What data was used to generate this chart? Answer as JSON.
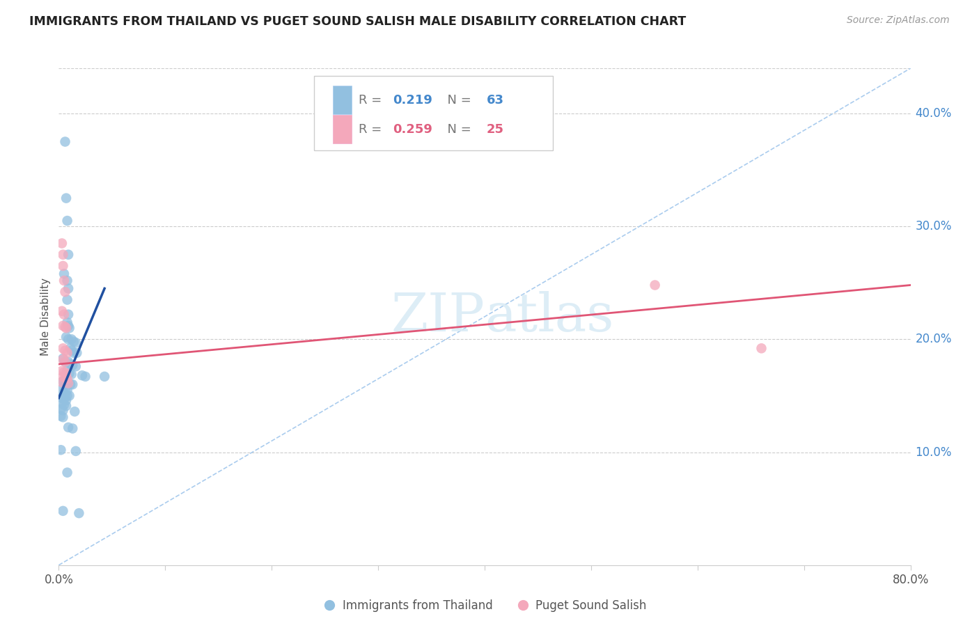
{
  "title": "IMMIGRANTS FROM THAILAND VS PUGET SOUND SALISH MALE DISABILITY CORRELATION CHART",
  "source": "Source: ZipAtlas.com",
  "ylabel": "Male Disability",
  "xlim": [
    0.0,
    0.8
  ],
  "ylim": [
    0.0,
    0.44
  ],
  "x_ticks": [
    0.0,
    0.1,
    0.2,
    0.3,
    0.4,
    0.5,
    0.6,
    0.7,
    0.8
  ],
  "y_ticks_right": [
    0.1,
    0.2,
    0.3,
    0.4
  ],
  "y_tick_labels_right": [
    "10.0%",
    "20.0%",
    "30.0%",
    "40.0%"
  ],
  "legend1_label": "Immigrants from Thailand",
  "legend2_label": "Puget Sound Salish",
  "R1": "0.219",
  "N1": "63",
  "R2": "0.259",
  "N2": "25",
  "blue_color": "#92C0E0",
  "pink_color": "#F4A8BB",
  "blue_line_color": "#2050A0",
  "pink_line_color": "#E05575",
  "dashed_line_color": "#AACCEE",
  "watermark_color": "#D8EAF5",
  "blue_dots": [
    [
      0.006,
      0.375
    ],
    [
      0.007,
      0.325
    ],
    [
      0.008,
      0.305
    ],
    [
      0.009,
      0.275
    ],
    [
      0.005,
      0.258
    ],
    [
      0.008,
      0.252
    ],
    [
      0.009,
      0.245
    ],
    [
      0.008,
      0.235
    ],
    [
      0.009,
      0.222
    ],
    [
      0.008,
      0.215
    ],
    [
      0.009,
      0.212
    ],
    [
      0.01,
      0.21
    ],
    [
      0.007,
      0.202
    ],
    [
      0.009,
      0.2
    ],
    [
      0.012,
      0.2
    ],
    [
      0.014,
      0.198
    ],
    [
      0.016,
      0.197
    ],
    [
      0.011,
      0.192
    ],
    [
      0.012,
      0.19
    ],
    [
      0.014,
      0.188
    ],
    [
      0.017,
      0.188
    ],
    [
      0.004,
      0.183
    ],
    [
      0.006,
      0.18
    ],
    [
      0.009,
      0.18
    ],
    [
      0.011,
      0.178
    ],
    [
      0.013,
      0.177
    ],
    [
      0.016,
      0.176
    ],
    [
      0.008,
      0.172
    ],
    [
      0.01,
      0.17
    ],
    [
      0.012,
      0.169
    ],
    [
      0.004,
      0.163
    ],
    [
      0.006,
      0.161
    ],
    [
      0.009,
      0.161
    ],
    [
      0.011,
      0.16
    ],
    [
      0.013,
      0.16
    ],
    [
      0.004,
      0.157
    ],
    [
      0.006,
      0.156
    ],
    [
      0.008,
      0.155
    ],
    [
      0.004,
      0.152
    ],
    [
      0.006,
      0.151
    ],
    [
      0.008,
      0.15
    ],
    [
      0.01,
      0.15
    ],
    [
      0.003,
      0.148
    ],
    [
      0.005,
      0.147
    ],
    [
      0.007,
      0.146
    ],
    [
      0.003,
      0.143
    ],
    [
      0.005,
      0.142
    ],
    [
      0.007,
      0.141
    ],
    [
      0.002,
      0.138
    ],
    [
      0.004,
      0.137
    ],
    [
      0.015,
      0.136
    ],
    [
      0.002,
      0.132
    ],
    [
      0.004,
      0.131
    ],
    [
      0.009,
      0.122
    ],
    [
      0.013,
      0.121
    ],
    [
      0.002,
      0.102
    ],
    [
      0.016,
      0.101
    ],
    [
      0.008,
      0.082
    ],
    [
      0.004,
      0.048
    ],
    [
      0.019,
      0.046
    ],
    [
      0.022,
      0.168
    ],
    [
      0.025,
      0.167
    ],
    [
      0.043,
      0.167
    ]
  ],
  "pink_dots": [
    [
      0.003,
      0.285
    ],
    [
      0.004,
      0.275
    ],
    [
      0.004,
      0.265
    ],
    [
      0.005,
      0.252
    ],
    [
      0.006,
      0.242
    ],
    [
      0.003,
      0.225
    ],
    [
      0.005,
      0.222
    ],
    [
      0.004,
      0.212
    ],
    [
      0.006,
      0.211
    ],
    [
      0.007,
      0.21
    ],
    [
      0.004,
      0.192
    ],
    [
      0.006,
      0.19
    ],
    [
      0.008,
      0.188
    ],
    [
      0.004,
      0.182
    ],
    [
      0.006,
      0.18
    ],
    [
      0.003,
      0.172
    ],
    [
      0.005,
      0.171
    ],
    [
      0.007,
      0.17
    ],
    [
      0.004,
      0.167
    ],
    [
      0.006,
      0.166
    ],
    [
      0.008,
      0.165
    ],
    [
      0.003,
      0.162
    ],
    [
      0.009,
      0.161
    ],
    [
      0.56,
      0.248
    ],
    [
      0.66,
      0.192
    ]
  ],
  "blue_line_x": [
    0.0,
    0.043
  ],
  "blue_line_y": [
    0.148,
    0.245
  ],
  "pink_line_x": [
    0.0,
    0.8
  ],
  "pink_line_y": [
    0.178,
    0.248
  ],
  "diag_line_x": [
    0.0,
    0.8
  ],
  "diag_line_y": [
    0.0,
    0.44
  ]
}
